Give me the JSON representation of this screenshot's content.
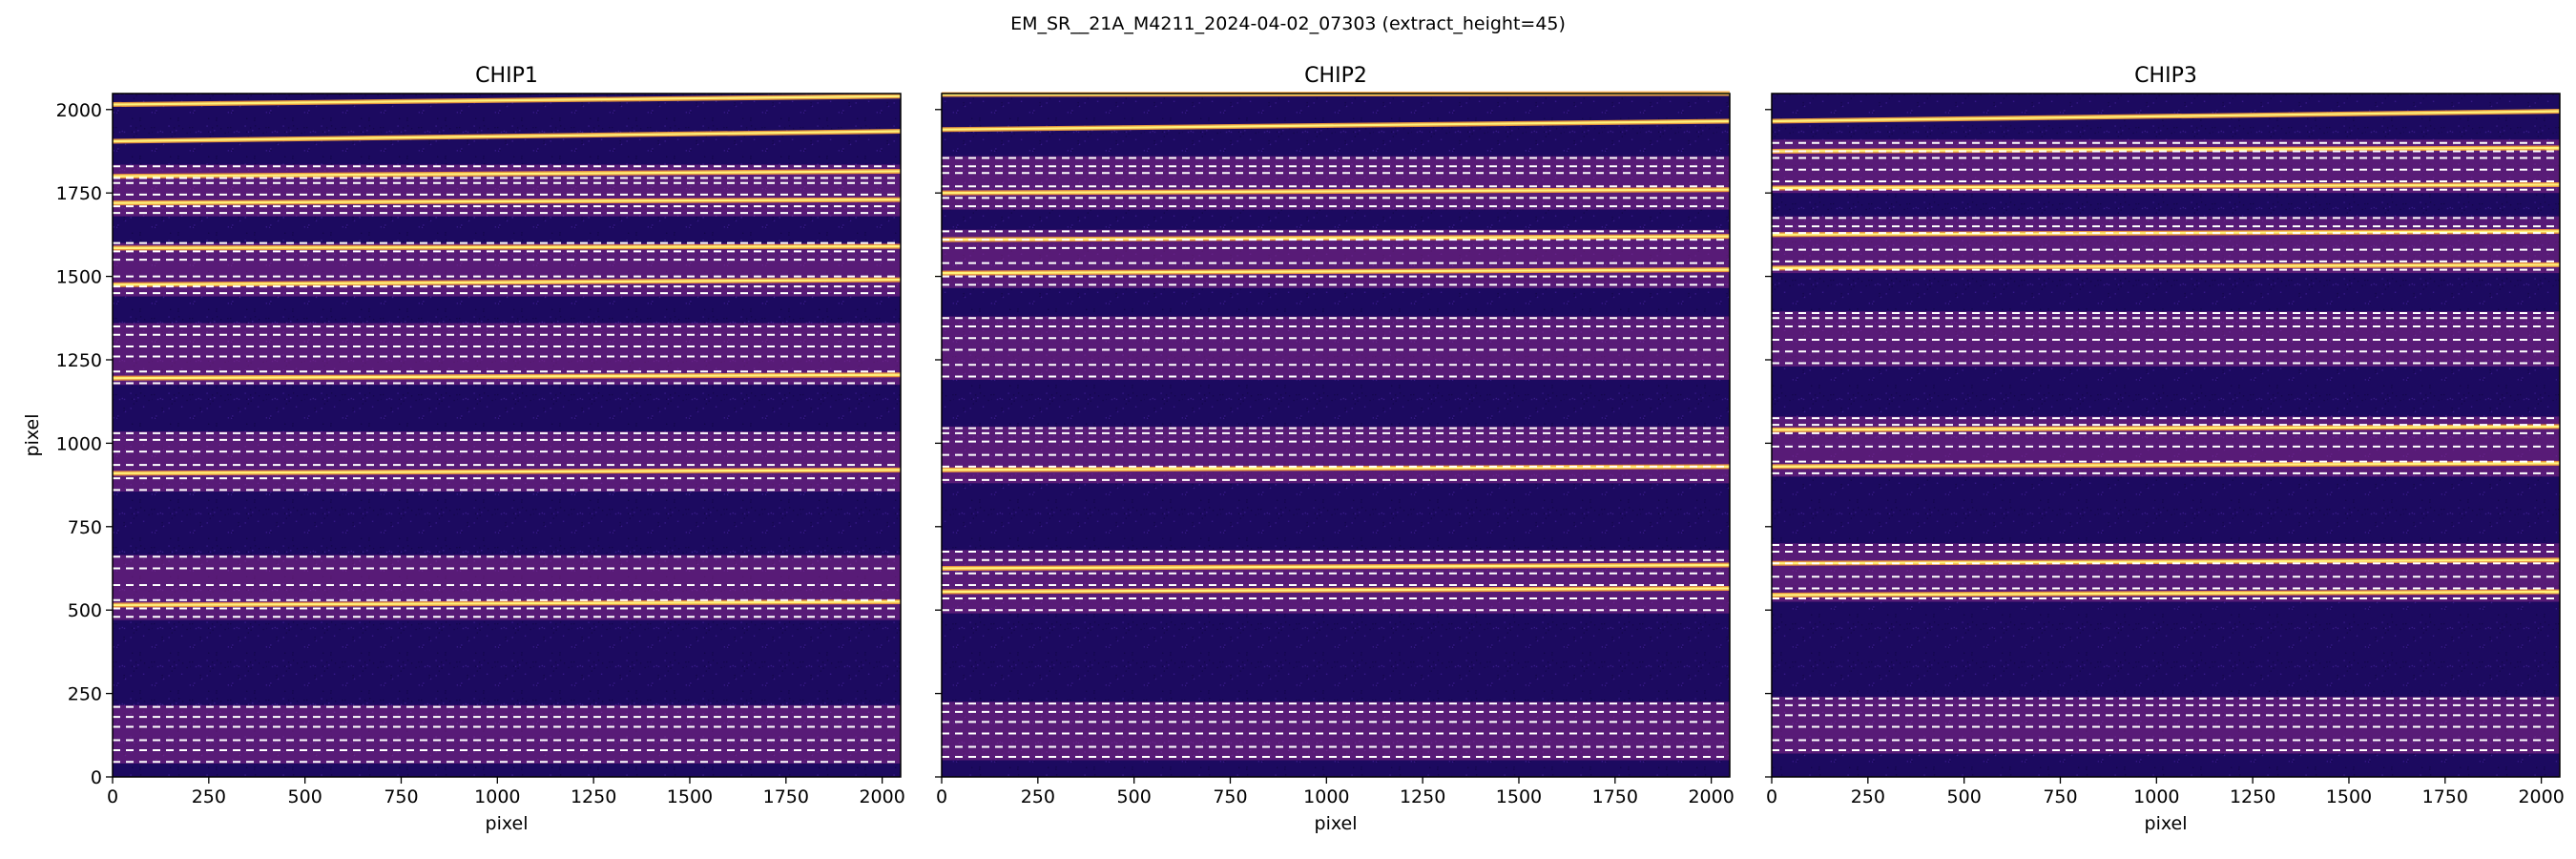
{
  "figure": {
    "suptitle": "EM_SR__21A_M4211_2024-04-02_07303  (extract_height=45)"
  },
  "colors": {
    "background_dark": "#1c0a60",
    "band_glow": "#8a2a8a",
    "trace_core": "#fff27a",
    "trace_edge": "#f7a23c",
    "dashed_line": "#ffffff"
  },
  "chart_data": [
    {
      "type": "heatmap",
      "title": "CHIP1",
      "xlabel": "pixel",
      "ylabel": "pixel",
      "xlim": [
        0,
        2048
      ],
      "ylim": [
        0,
        2048
      ],
      "xticks": [
        0,
        250,
        500,
        750,
        1000,
        1250,
        1500,
        1750,
        2000
      ],
      "yticks": [
        0,
        250,
        500,
        750,
        1000,
        1250,
        1500,
        1750,
        2000
      ],
      "colormap": "plasma",
      "bright_traces": [
        [
          2015,
          2040
        ],
        [
          1905,
          1935
        ],
        [
          1800,
          1815
        ],
        [
          1720,
          1730
        ],
        [
          1585,
          1590
        ],
        [
          1475,
          1490
        ],
        [
          1195,
          1205
        ],
        [
          910,
          920
        ],
        [
          515,
          525
        ]
      ],
      "illuminated_bands": [
        [
          40,
          215
        ],
        [
          470,
          665
        ],
        [
          855,
          1035
        ],
        [
          1175,
          1360
        ],
        [
          1440,
          1600
        ],
        [
          1680,
          1835
        ]
      ],
      "extraction_bounds": [
        45,
        80,
        110,
        150,
        180,
        210,
        480,
        505,
        530,
        575,
        625,
        660,
        860,
        895,
        935,
        975,
        1010,
        1030,
        1180,
        1215,
        1260,
        1290,
        1325,
        1350,
        1450,
        1470,
        1500,
        1550,
        1575,
        1600,
        1690,
        1710,
        1745,
        1780,
        1795,
        1830
      ]
    },
    {
      "type": "heatmap",
      "title": "CHIP2",
      "xlabel": "pixel",
      "ylabel": "",
      "xlim": [
        0,
        2048
      ],
      "ylim": [
        0,
        2048
      ],
      "xticks": [
        0,
        250,
        500,
        750,
        1000,
        1250,
        1500,
        1750,
        2000
      ],
      "yticks": [
        0,
        250,
        500,
        750,
        1000,
        1250,
        1500,
        1750,
        2000
      ],
      "colormap": "plasma",
      "bright_traces": [
        [
          2045,
          2048
        ],
        [
          1940,
          1965
        ],
        [
          1750,
          1760
        ],
        [
          1610,
          1620
        ],
        [
          1510,
          1520
        ],
        [
          920,
          930
        ],
        [
          625,
          635
        ],
        [
          555,
          565
        ]
      ],
      "illuminated_bands": [
        [
          50,
          225
        ],
        [
          490,
          680
        ],
        [
          880,
          1050
        ],
        [
          1190,
          1380
        ],
        [
          1465,
          1640
        ],
        [
          1700,
          1860
        ]
      ],
      "extraction_bounds": [
        60,
        90,
        130,
        165,
        195,
        220,
        500,
        535,
        575,
        610,
        650,
        675,
        890,
        930,
        965,
        1005,
        1030,
        1045,
        1200,
        1235,
        1280,
        1315,
        1350,
        1375,
        1475,
        1500,
        1540,
        1585,
        1610,
        1635,
        1710,
        1735,
        1770,
        1810,
        1830,
        1855
      ]
    },
    {
      "type": "heatmap",
      "title": "CHIP3",
      "xlabel": "pixel",
      "ylabel": "",
      "xlim": [
        0,
        2048
      ],
      "ylim": [
        0,
        2048
      ],
      "xticks": [
        0,
        250,
        500,
        750,
        1000,
        1250,
        1500,
        1750,
        2000
      ],
      "yticks": [
        0,
        250,
        500,
        750,
        1000,
        1250,
        1500,
        1750,
        2000
      ],
      "colormap": "plasma",
      "bright_traces": [
        [
          1965,
          1995
        ],
        [
          1875,
          1885
        ],
        [
          1765,
          1775
        ],
        [
          1625,
          1635
        ],
        [
          1525,
          1535
        ],
        [
          1040,
          1050
        ],
        [
          930,
          940
        ],
        [
          640,
          650
        ],
        [
          545,
          555
        ]
      ],
      "illuminated_bands": [
        [
          70,
          240
        ],
        [
          525,
          700
        ],
        [
          900,
          1080
        ],
        [
          1230,
          1395
        ],
        [
          1510,
          1680
        ],
        [
          1750,
          1910
        ]
      ],
      "extraction_bounds": [
        80,
        110,
        150,
        185,
        215,
        235,
        535,
        565,
        600,
        640,
        675,
        695,
        910,
        945,
        990,
        1030,
        1055,
        1075,
        1240,
        1275,
        1310,
        1350,
        1375,
        1390,
        1520,
        1545,
        1580,
        1630,
        1650,
        1675,
        1760,
        1785,
        1820,
        1855,
        1875,
        1900
      ]
    }
  ]
}
